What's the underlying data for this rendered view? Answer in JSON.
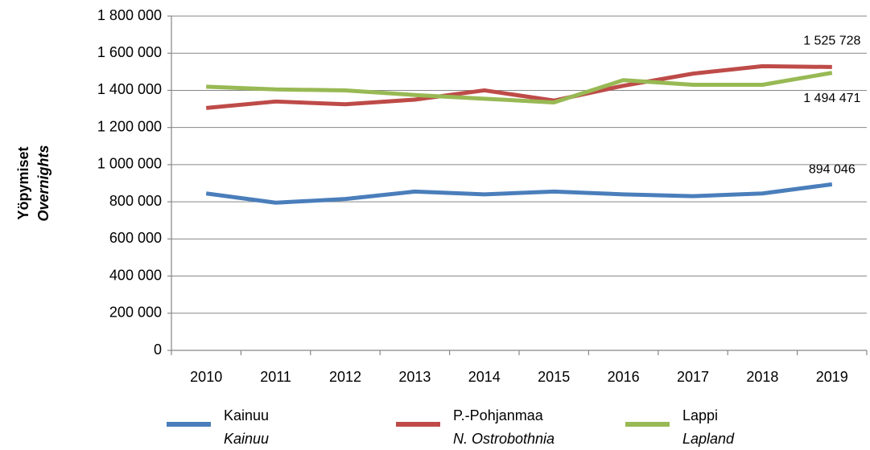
{
  "chart_data": {
    "type": "line",
    "y_label": "Yöpymiset",
    "y_label_en": "Overnights",
    "categories": [
      "2010",
      "2011",
      "2012",
      "2013",
      "2014",
      "2015",
      "2016",
      "2017",
      "2018",
      "2019"
    ],
    "series": [
      {
        "name": "Kainuu",
        "name_en": "Kainuu",
        "color": "#4a7ebb",
        "values": [
          845000,
          795000,
          815000,
          855000,
          840000,
          855000,
          840000,
          830000,
          845000,
          894046
        ],
        "value_labels": [
          null,
          null,
          null,
          null,
          null,
          null,
          null,
          null,
          null,
          "894 046"
        ]
      },
      {
        "name": "P.-Pohjanmaa",
        "name_en": "N. Ostrobothnia",
        "color": "#be4b48",
        "values": [
          1305000,
          1340000,
          1325000,
          1350000,
          1400000,
          1345000,
          1425000,
          1490000,
          1530000,
          1525728
        ],
        "value_labels": [
          null,
          null,
          null,
          null,
          null,
          null,
          null,
          null,
          null,
          "1 525 728"
        ]
      },
      {
        "name": "Lappi",
        "name_en": "Lapland",
        "color": "#98b954",
        "values": [
          1420000,
          1405000,
          1400000,
          1375000,
          1355000,
          1335000,
          1455000,
          1430000,
          1430000,
          1494471
        ],
        "value_labels": [
          null,
          null,
          null,
          null,
          null,
          null,
          null,
          null,
          null,
          "1 494 471"
        ]
      }
    ],
    "ylim": [
      0,
      1800000
    ],
    "yticks": [
      0,
      {
        "value": 200000,
        "label": "200 000"
      },
      {
        "value": 400000,
        "label": "400 000"
      },
      {
        "value": 600000,
        "label": "600 000"
      },
      {
        "value": 800000,
        "label": "800 000"
      },
      {
        "value": 1000000,
        "label": "1 000 000"
      },
      {
        "value": 1200000,
        "label": "1 200 000"
      },
      {
        "value": 1400000,
        "label": "1 400 000"
      },
      {
        "value": 1600000,
        "label": "1 600 000"
      },
      {
        "value": 1800000,
        "label": "1 800 000"
      }
    ],
    "grid": true,
    "legend": "bottom"
  }
}
